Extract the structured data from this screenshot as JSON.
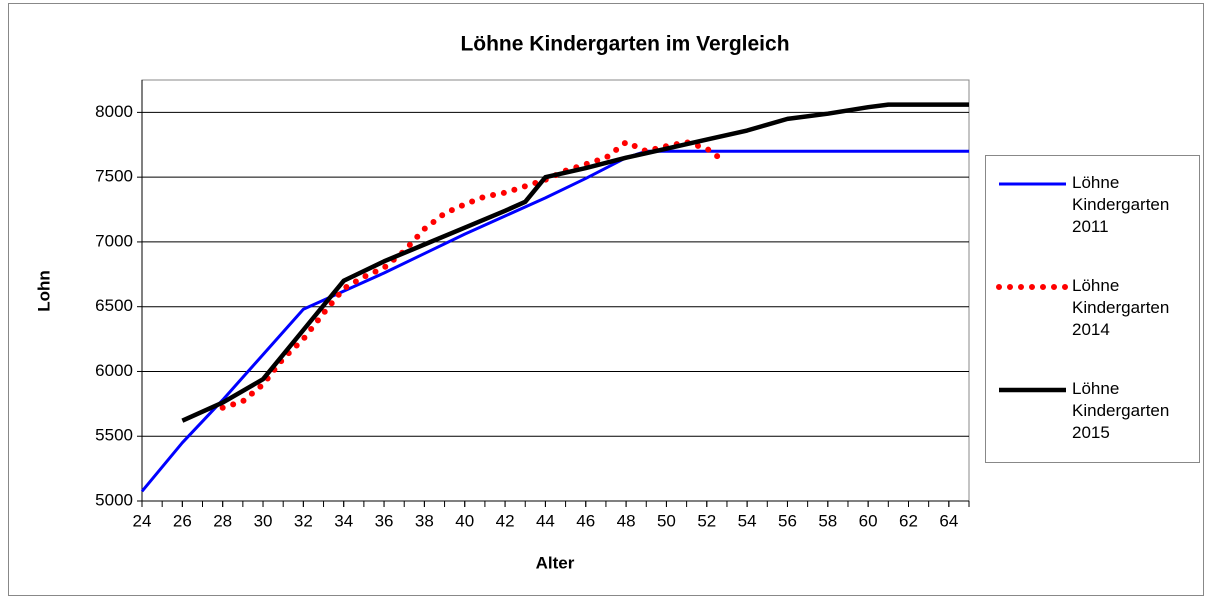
{
  "chart_data": {
    "type": "line",
    "title": "Löhne Kindergarten im Vergleich",
    "x_label": "Alter",
    "y_label": "Lohn",
    "xlim": [
      24,
      65
    ],
    "xticks": [
      24,
      26,
      28,
      30,
      32,
      34,
      36,
      38,
      40,
      42,
      44,
      46,
      48,
      50,
      52,
      54,
      56,
      58,
      60,
      62,
      64
    ],
    "ylim": [
      5000,
      8250
    ],
    "yticks": [
      5000,
      5500,
      6000,
      6500,
      7000,
      7500,
      8000
    ],
    "grid": true,
    "legend": "right",
    "series": [
      {
        "name": "Löhne Kindergarten 2011",
        "color": "#0000ff",
        "style": "solid",
        "x": [
          24,
          26,
          28,
          30,
          32,
          34,
          36,
          38,
          40,
          42,
          44,
          46,
          48,
          49,
          65
        ],
        "values": [
          5075,
          5450,
          5780,
          6130,
          6480,
          6620,
          6760,
          6910,
          7060,
          7200,
          7340,
          7490,
          7650,
          7700,
          7700
        ]
      },
      {
        "name": "Löhne Kindergarten 2014",
        "color": "#ff0000",
        "style": "dotted",
        "x": [
          28,
          29,
          30,
          31,
          32,
          33,
          34,
          35,
          36,
          37,
          38,
          39,
          40,
          41,
          42,
          43,
          44,
          45,
          46,
          47,
          48,
          49,
          50,
          51,
          52,
          52.8
        ],
        "values": [
          5720,
          5770,
          5900,
          6100,
          6250,
          6450,
          6640,
          6730,
          6800,
          6930,
          7100,
          7220,
          7290,
          7350,
          7380,
          7430,
          7480,
          7550,
          7600,
          7650,
          7770,
          7700,
          7740,
          7770,
          7720,
          7630
        ]
      },
      {
        "name": "Löhne Kindergarten 2015",
        "color": "#000000",
        "style": "solid",
        "x": [
          26,
          28,
          30,
          32,
          34,
          36,
          38,
          40,
          42,
          43,
          44,
          46,
          48,
          50,
          52,
          54,
          56,
          58,
          60,
          61,
          65
        ],
        "values": [
          5620,
          5760,
          5940,
          6320,
          6700,
          6850,
          6980,
          7110,
          7240,
          7310,
          7500,
          7570,
          7650,
          7720,
          7790,
          7860,
          7950,
          7990,
          8040,
          8060,
          8060
        ]
      }
    ]
  }
}
